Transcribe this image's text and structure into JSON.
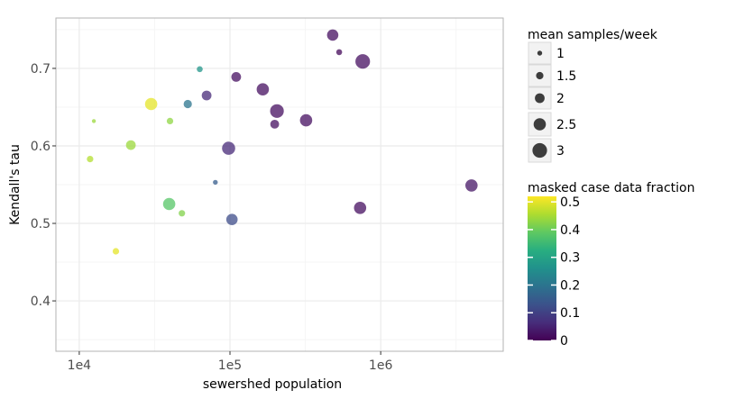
{
  "chart_data": {
    "type": "scatter",
    "title": "",
    "xlabel": "sewershed population",
    "ylabel": "Kendall's tau",
    "x_scale": "log10",
    "xlim": [
      7000,
      6500000
    ],
    "ylim": [
      0.335,
      0.765
    ],
    "x_ticks": [
      10000,
      100000,
      1000000
    ],
    "x_tick_labels": [
      "1e4",
      "1e5",
      "1e6"
    ],
    "y_ticks": [
      0.4,
      0.5,
      0.6,
      0.7
    ],
    "y_tick_labels": [
      "0.4",
      "0.5",
      "0.6",
      "0.7"
    ],
    "grid": true,
    "points": [
      {
        "x": 12500,
        "y": 0.632,
        "size": 0.8,
        "fraction": 0.44
      },
      {
        "x": 11800,
        "y": 0.583,
        "size": 1.3,
        "fraction": 0.46
      },
      {
        "x": 17500,
        "y": 0.464,
        "size": 1.3,
        "fraction": 0.5
      },
      {
        "x": 22000,
        "y": 0.601,
        "size": 2.0,
        "fraction": 0.44
      },
      {
        "x": 30000,
        "y": 0.654,
        "size": 2.5,
        "fraction": 0.5
      },
      {
        "x": 40000,
        "y": 0.632,
        "size": 1.3,
        "fraction": 0.43
      },
      {
        "x": 39500,
        "y": 0.525,
        "size": 2.5,
        "fraction": 0.38
      },
      {
        "x": 48000,
        "y": 0.513,
        "size": 1.3,
        "fraction": 0.42
      },
      {
        "x": 52500,
        "y": 0.654,
        "size": 1.7,
        "fraction": 0.2
      },
      {
        "x": 63000,
        "y": 0.699,
        "size": 1.2,
        "fraction": 0.27
      },
      {
        "x": 70000,
        "y": 0.665,
        "size": 2.0,
        "fraction": 0.06
      },
      {
        "x": 80000,
        "y": 0.553,
        "size": 1.0,
        "fraction": 0.15
      },
      {
        "x": 98000,
        "y": 0.597,
        "size": 2.7,
        "fraction": 0.06
      },
      {
        "x": 103000,
        "y": 0.505,
        "size": 2.3,
        "fraction": 0.12
      },
      {
        "x": 110000,
        "y": 0.689,
        "size": 2.0,
        "fraction": 0.02
      },
      {
        "x": 165000,
        "y": 0.673,
        "size": 2.5,
        "fraction": 0.02
      },
      {
        "x": 198000,
        "y": 0.628,
        "size": 1.8,
        "fraction": 0.02
      },
      {
        "x": 205000,
        "y": 0.645,
        "size": 2.8,
        "fraction": 0.02
      },
      {
        "x": 320000,
        "y": 0.633,
        "size": 2.5,
        "fraction": 0.02
      },
      {
        "x": 480000,
        "y": 0.743,
        "size": 2.3,
        "fraction": 0.02
      },
      {
        "x": 530000,
        "y": 0.721,
        "size": 1.2,
        "fraction": 0.01
      },
      {
        "x": 760000,
        "y": 0.709,
        "size": 3.0,
        "fraction": 0.02
      },
      {
        "x": 730000,
        "y": 0.52,
        "size": 2.5,
        "fraction": 0.02
      },
      {
        "x": 4000000,
        "y": 0.549,
        "size": 2.5,
        "fraction": 0.03
      }
    ],
    "legend": {
      "placement": "right",
      "size": {
        "title": "mean samples/week",
        "entries": [
          {
            "value": 1,
            "label": "1"
          },
          {
            "value": 1.5,
            "label": "1.5"
          },
          {
            "value": 2,
            "label": "2"
          },
          {
            "value": 2.5,
            "label": "2.5"
          },
          {
            "value": 3,
            "label": "3"
          }
        ]
      },
      "color": {
        "title": "masked case data fraction",
        "range": [
          0,
          0.52
        ],
        "ticks": [
          0,
          0.1,
          0.2,
          0.3,
          0.4,
          0.5
        ],
        "tick_labels": [
          "0",
          "0.1",
          "0.2",
          "0.3",
          "0.4",
          "0.5"
        ],
        "colormap": "viridis"
      }
    },
    "colors": {
      "panel_border": "#b3b3b3",
      "grid_major": "#ebebeb",
      "grid_minor": "#f5f5f5",
      "tick": "#333333",
      "point_opacity": 0.75
    }
  }
}
